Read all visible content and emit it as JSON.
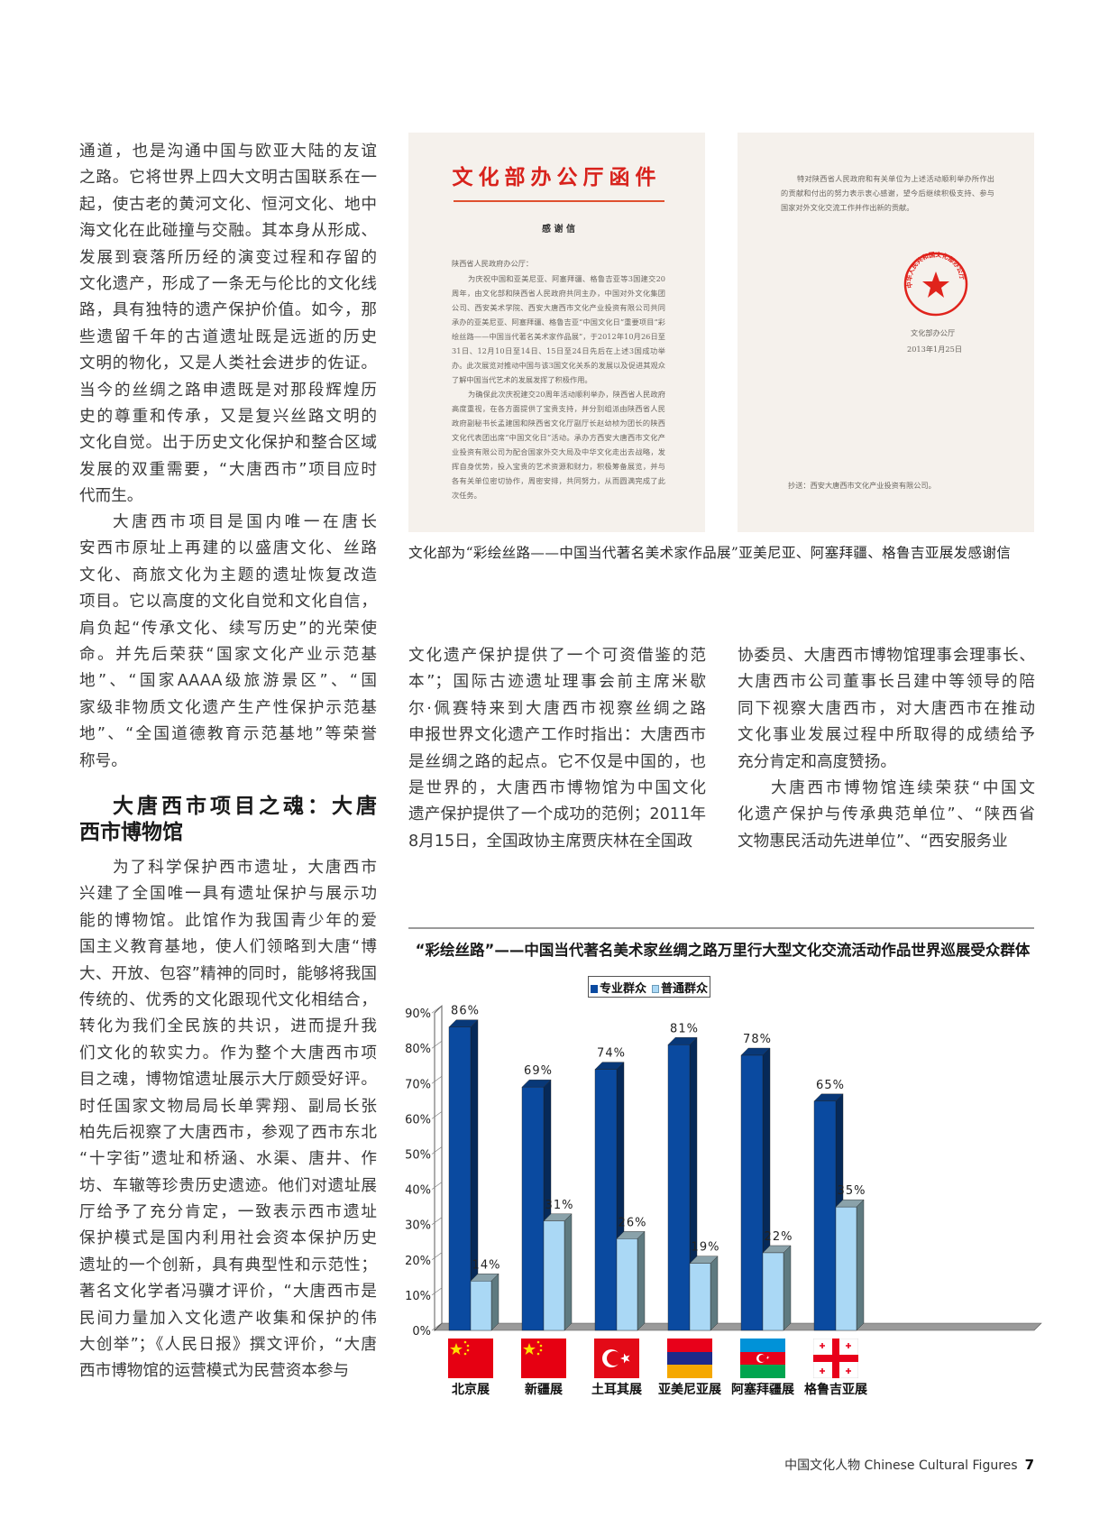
{
  "left_column": {
    "paragraphs": [
      [
        "通道，也是沟通中国与欧亚大陆的友谊",
        "之路。它将世界上四大文明古国联系在一",
        "起，使古老的黄河文化、恒河文化、地中",
        "海文化在此碰撞与交融。其本身从形成、",
        "发展到衰落所历经的演变过程和存留的",
        "文化遗产，形成了一条无与伦比的文化线",
        "路，具有独特的遗产保护价值。如今，那",
        "些遗留千年的古道遗址既是远逝的历史",
        "文明的物化，又是人类社会进步的佐证。",
        "当今的丝绸之路申遗既是对那段辉煌历",
        "史的尊重和传承，又是复兴丝路文明的",
        "文化自觉。出于历史文化保护和整合区域",
        "发展的双重需要，“大唐西市”项目应时",
        "代而生。"
      ],
      [
        "大唐西市项目是国内唯一在唐长",
        "安西市原址上再建的以盛唐文化、丝路",
        "文化、商旅文化为主题的遗址恢复改造",
        "项目。它以高度的文化自觉和文化自信，",
        "肩负起“传承文化、续写历史”的光荣使",
        "命。并先后荣获“国家文化产业示范基",
        "地”、“国家AAAA级旅游景区”、“国",
        "家级非物质文化遗产生产性保护示范基",
        "地”、“全国道德教育示范基地”等荣誉",
        "称号。"
      ],
      [
        "为了科学保护西市遗址，大唐西市",
        "兴建了全国唯一具有遗址保护与展示功",
        "能的博物馆。此馆作为我国青少年的爱",
        "国主义教育基地，使人们领略到大唐“博",
        "大、开放、包容”精神的同时，能够将我国",
        "传统的、优秀的文化跟现代文化相结合，",
        "转化为我们全民族的共识，进而提升我",
        "们文化的软实力。作为整个大唐西市项",
        "目之魂，博物馆遗址展示大厅颇受好评。",
        "时任国家文物局局长单霁翔、副局长张",
        "柏先后视察了大唐西市，参观了西市东北",
        "“十字街”遗址和桥涵、水渠、唐井、作",
        "坊、车辙等珍贵历史遗迹。他们对遗址展",
        "厅给予了充分肯定，一致表示西市遗址",
        "保护模式是国内利用社会资本保护历史",
        "遗址的一个创新，具有典型性和示范性；",
        "著名文化学者冯骥才评价，“大唐西市是",
        "民间力量加入文化遗产收集和保护的伟",
        "大创举”；《人民日报》撰文评价，“大唐",
        "西市博物馆的运营模式为民营资本参与"
      ]
    ],
    "heading": [
      "大唐西市项目之魂：大唐",
      "西市博物馆"
    ]
  },
  "middle_column": {
    "paragraphs": [
      [
        "文化遗产保护提供了一个可资借鉴的范",
        "本”；国际古迹遗址理事会前主席米歇",
        "尔·佩赛特来到大唐西市视察丝绸之路",
        "申报世界文化遗产工作时指出：大唐西市",
        "是丝绸之路的起点。它不仅是中国的，也",
        "是世界的，大唐西市博物馆为中国文化",
        "遗产保护提供了一个成功的范例；2011年",
        "8月15日，全国政协主席贾庆林在全国政"
      ]
    ]
  },
  "right_column": {
    "paragraphs": [
      [
        "协委员、大唐西市博物馆理事会理事长、",
        "大唐西市公司董事长吕建中等领导的陪",
        "同下视察大唐西市，对大唐西市在推动",
        "文化事业发展过程中所取得的成绩给予",
        "充分肯定和高度赞扬。"
      ],
      [
        "大唐西市博物馆连续荣获“中国文",
        "化遗产保护与传承典范单位”、“陕西省",
        "文物惠民活动先进单位”、“西安服务业"
      ]
    ]
  },
  "letter_page1": {
    "letterhead": "文化部办公厅函件",
    "subject": "感 谢 信",
    "salutation": "陕西省人民政府办公厅：",
    "body1": "为庆祝中国和亚美尼亚、阿塞拜疆、格鲁吉亚等3国建交20周年，由文化部和陕西省人民政府共同主办，中国对外文化集团公司、西安美术学院、西安大唐西市文化产业投资有限公司共同承办的亚美尼亚、阿塞拜疆、格鲁吉亚“中国文化日”重要项目“彩绘丝路——中国当代著名美术家作品展”，于2012年10月26日至31日、12月10日至14日、15日至24日先后在上述3国成功举办。此次展览对推动中国与该3国文化关系的发展以及促进其观众了解中国当代艺术的发展发挥了积极作用。",
    "body2": "为确保此次庆祝建交20周年活动顺利举办，陕西省人民政府高度重视，在各方面提供了宝贵支持，并分别组派由陕西省人民政府副秘书长孟建国和陕西省文化厅副厅长赵幼桢为团长的陕西文化代表团出席“中国文化日”活动。承办方西安大唐西市文化产业投资有限公司为配合国家外交大局及中华文化走出去战略，发挥自身优势，投入宝贵的艺术资源和财力，积极筹备展览，并与各有关单位密切协作，周密安排，共同努力，从而圆满完成了此次任务。"
  },
  "letter_page2": {
    "body": "特对陕西省人民政府和有关单位为上述活动顺利举办所作出的贡献和付出的努力表示衷心感谢，望今后继续积极支持、参与国家对外文化交流工作并作出新的贡献。",
    "seal_text": "中华人民共和国文化部办公厅",
    "signature": "文化部办公厅",
    "date": "2013年1月25日",
    "cc": "抄送：西安大唐西市文化产业投资有限公司。",
    "seal_color": "#e0231c"
  },
  "caption": "文化部为“彩绘丝路——中国当代著名美术家作品展”亚美尼亚、阿塞拜疆、格鲁吉亚展发感谢信",
  "chart_data": {
    "type": "bar",
    "title": "“彩绘丝路”——中国当代著名美术家丝绸之路万里行大型文化交流活动作品世界巡展受众群体",
    "categories": [
      "北京展",
      "新疆展",
      "土耳其展",
      "亚美尼亚展",
      "阿塞拜疆展",
      "格鲁吉亚展"
    ],
    "category_icons": [
      "china-flag",
      "china-flag",
      "turkey-flag",
      "armenia-flag",
      "azerbaijan-flag",
      "georgia-flag"
    ],
    "series": [
      {
        "name": "专业群众",
        "values": [
          86,
          69,
          74,
          81,
          78,
          65
        ],
        "color": "#0a4aa0"
      },
      {
        "name": "普通群众",
        "values": [
          14,
          31,
          26,
          19,
          22,
          35
        ],
        "color": "#aad8f5"
      }
    ],
    "value_labels": {
      "s0": [
        "86%",
        "69%",
        "74%",
        "81%",
        "78%",
        "65%"
      ],
      "s1": [
        "14%",
        "31%",
        "26%",
        "19%",
        "22%",
        "35%"
      ]
    },
    "yticks": [
      "0%",
      "10%",
      "20%",
      "30%",
      "40%",
      "50%",
      "60%",
      "70%",
      "80%",
      "90%"
    ],
    "ylim": [
      0,
      90
    ],
    "style": "3d-clustered-column",
    "legend_position": "top",
    "grid": false
  },
  "footer": {
    "publication": "中国文化人物 Chinese Cultural Figures",
    "page_number": "7"
  }
}
